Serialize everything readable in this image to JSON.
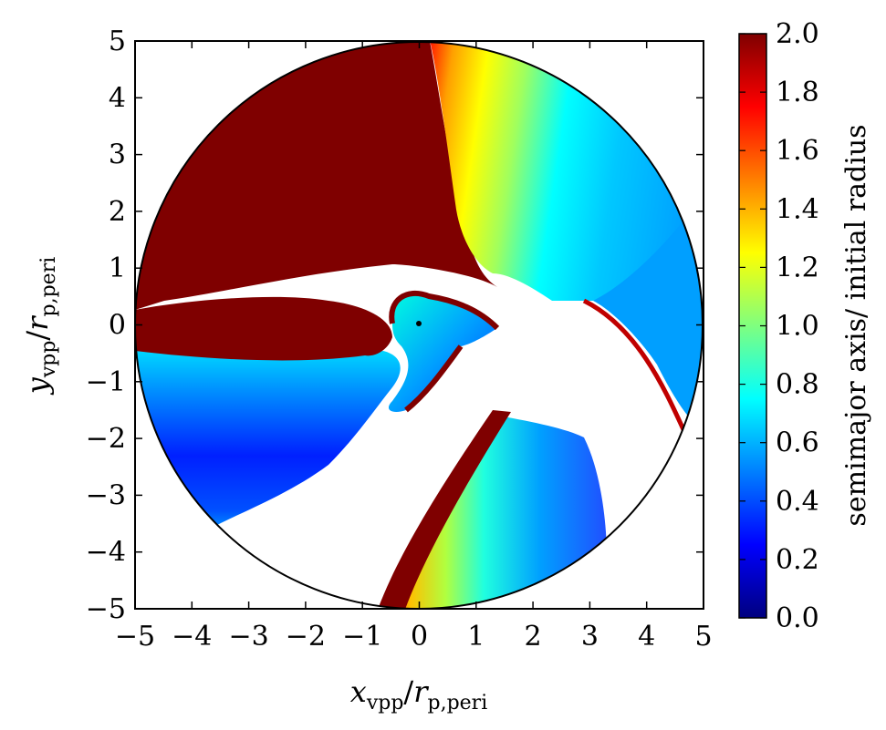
{
  "chart_data": {
    "type": "heatmap",
    "title": "",
    "xlabel": {
      "base": "x",
      "sub1": "vpp",
      "slash": "/",
      "var": "r",
      "sub2": "p,peri"
    },
    "ylabel": {
      "base": "y",
      "sub1": "vpp",
      "slash": "/",
      "var": "r",
      "sub2": "p,peri"
    },
    "xlim": [
      -5,
      5
    ],
    "ylim": [
      -5,
      5
    ],
    "x_ticks": [
      -5,
      -4,
      -3,
      -2,
      -1,
      0,
      1,
      2,
      3,
      4,
      5
    ],
    "y_ticks": [
      -5,
      -4,
      -3,
      -2,
      -1,
      0,
      1,
      2,
      3,
      4,
      5
    ],
    "x_tick_labels": [
      "−5",
      "−4",
      "−3",
      "−2",
      "−1",
      "0",
      "1",
      "2",
      "3",
      "4",
      "5"
    ],
    "y_tick_labels": [
      "−5",
      "−4",
      "−3",
      "−2",
      "−1",
      "0",
      "1",
      "2",
      "3",
      "4",
      "5"
    ],
    "domain": {
      "shape": "circle",
      "radius": 5,
      "center": [
        0,
        0
      ]
    },
    "central_point": [
      0,
      0
    ],
    "grid": false,
    "colorbar": {
      "label": "semimajor axis/ initial radius",
      "range": [
        0.0,
        2.0
      ],
      "tick_values": [
        0.0,
        0.2,
        0.4,
        0.6,
        0.8,
        1.0,
        1.2,
        1.4,
        1.6,
        1.8,
        2.0
      ],
      "tick_labels": [
        "0.0",
        "0.2",
        "0.4",
        "0.6",
        "0.8",
        "1.0",
        "1.2",
        "1.4",
        "1.6",
        "1.8",
        "2.0"
      ],
      "colormap": "jet",
      "colors": [
        "#00007f",
        "#0000ff",
        "#007fff",
        "#00ffff",
        "#7fff7f",
        "#ffff00",
        "#ff7f00",
        "#ff0000",
        "#7f0000"
      ]
    },
    "regions": [
      {
        "name": "upper-left-unbound",
        "value": 2.0
      },
      {
        "name": "upper-right-fan",
        "value_range": [
          0.5,
          2.0
        ]
      },
      {
        "name": "left-lower-lobe",
        "value_range": [
          0.2,
          2.0
        ]
      },
      {
        "name": "bottom-right-lobe",
        "value_range": [
          0.4,
          2.0
        ]
      },
      {
        "name": "central-tongue",
        "value_range": [
          0.5,
          2.0
        ]
      }
    ],
    "colors": {
      "background": "#ffffff",
      "axes": "#000000",
      "unbound": "#7f0000"
    }
  }
}
